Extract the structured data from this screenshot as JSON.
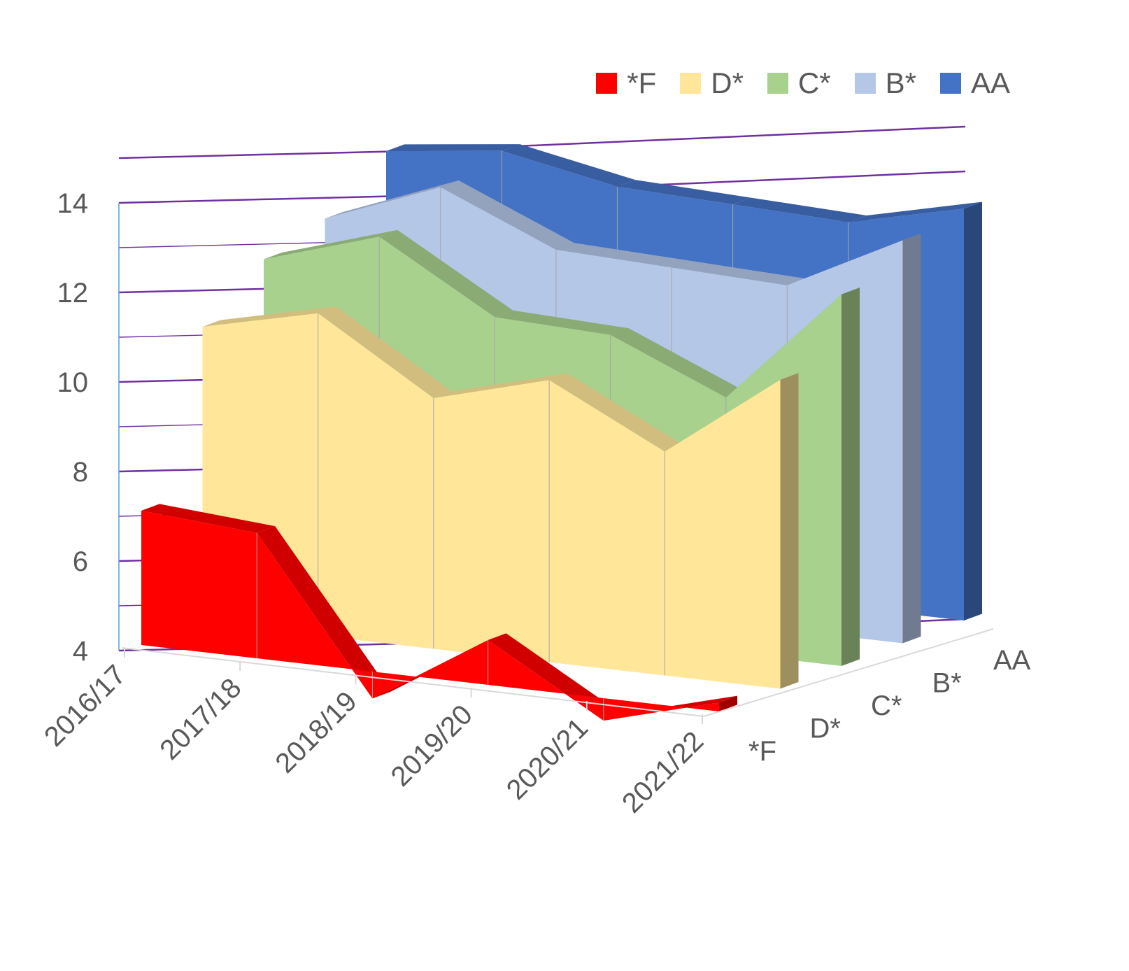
{
  "chart_data": {
    "type": "area",
    "variant": "3d-area",
    "categories": [
      "2016/17",
      "2017/18",
      "2018/19",
      "2019/20",
      "2020/21",
      "2021/22"
    ],
    "depth_labels": [
      "*F",
      "D*",
      "C*",
      "B*",
      "AA"
    ],
    "ylim": [
      4,
      14
    ],
    "yticks": [
      "4",
      "6",
      "8",
      "10",
      "12",
      "14"
    ],
    "legend_position": "top-right",
    "grid": true,
    "series": [
      {
        "name": "*F",
        "color": "#ff0000",
        "values": [
          7.0,
          6.8,
          3.4,
          5.0,
          3.5,
          4.2
        ]
      },
      {
        "name": "D*",
        "color": "#ffe699",
        "values": [
          10.6,
          11.2,
          9.6,
          10.3,
          9.0,
          10.9
        ]
      },
      {
        "name": "C*",
        "color": "#a9d18e",
        "values": [
          11.6,
          12.4,
          10.9,
          10.8,
          9.7,
          12.3
        ]
      },
      {
        "name": "B*",
        "color": "#b4c7e7",
        "values": [
          12.0,
          13.0,
          11.9,
          11.8,
          11.7,
          13.0
        ]
      },
      {
        "name": "AA",
        "color": "#4472c4",
        "values": [
          13.0,
          13.3,
          12.8,
          12.7,
          12.6,
          13.2
        ]
      }
    ]
  }
}
